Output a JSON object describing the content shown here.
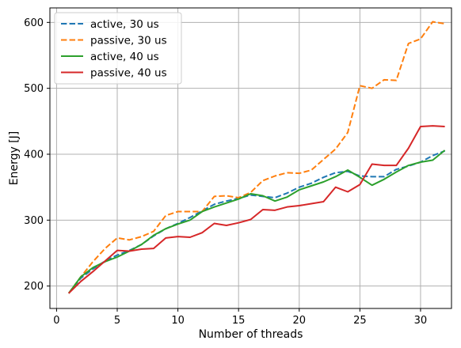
{
  "chart_data": {
    "type": "line",
    "xlabel": "Number of threads",
    "ylabel": "Energy [J]",
    "xlim": [
      -0.55,
      32.55
    ],
    "ylim": [
      166,
      622
    ],
    "x_ticks": [
      0,
      5,
      10,
      15,
      20,
      25,
      30
    ],
    "y_ticks": [
      200,
      300,
      400,
      500,
      600
    ],
    "grid": true,
    "legend_position": "top-left",
    "x": [
      1,
      2,
      3,
      4,
      5,
      6,
      7,
      8,
      9,
      10,
      11,
      12,
      13,
      14,
      15,
      16,
      17,
      18,
      19,
      20,
      21,
      22,
      23,
      24,
      25,
      26,
      27,
      28,
      29,
      30,
      31,
      32
    ],
    "series": [
      {
        "name": "active, 30 us",
        "color": "#1f77b4",
        "dash": "dashed",
        "values": [
          189,
          212,
          226,
          238,
          247,
          254,
          263,
          276,
          287,
          295,
          304,
          314,
          324,
          329,
          333,
          338,
          336,
          334,
          341,
          350,
          356,
          365,
          372,
          374,
          367,
          366,
          366,
          377,
          382,
          388,
          398,
          405
        ]
      },
      {
        "name": "passive, 30 us",
        "color": "#ff7f0e",
        "dash": "dashed",
        "values": [
          189,
          214,
          237,
          257,
          273,
          270,
          275,
          283,
          307,
          313,
          313,
          313,
          336,
          337,
          334,
          342,
          360,
          367,
          372,
          371,
          376,
          392,
          408,
          433,
          504,
          500,
          513,
          512,
          568,
          575,
          601,
          598
        ]
      },
      {
        "name": "active, 40 us",
        "color": "#2ca02c",
        "dash": "solid",
        "values": [
          189,
          214,
          228,
          237,
          244,
          253,
          263,
          277,
          287,
          294,
          300,
          313,
          320,
          326,
          332,
          340,
          337,
          329,
          335,
          346,
          352,
          358,
          366,
          376,
          365,
          353,
          362,
          373,
          383,
          388,
          391,
          406
        ]
      },
      {
        "name": "passive, 40 us",
        "color": "#d62728",
        "dash": "solid",
        "values": [
          189,
          207,
          222,
          238,
          254,
          253,
          256,
          257,
          273,
          275,
          274,
          281,
          295,
          292,
          296,
          301,
          316,
          315,
          320,
          322,
          325,
          328,
          350,
          343,
          354,
          385,
          383,
          383,
          409,
          442,
          443,
          442
        ]
      }
    ]
  }
}
